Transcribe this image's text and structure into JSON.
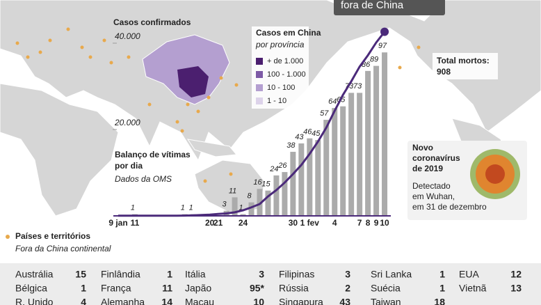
{
  "chart_data": {
    "type": "bar",
    "title": [
      "Balanço de vítimas",
      "por dia"
    ],
    "subtitle": "Dados da OMS",
    "y2_label": "Casos confirmados",
    "annotation": "fora de China",
    "categories": [
      "9 jan",
      null,
      "11",
      null,
      null,
      null,
      null,
      null,
      null,
      null,
      null,
      "20",
      "21",
      null,
      null,
      "24",
      null,
      null,
      null,
      null,
      null,
      "30",
      null,
      "1 fev",
      null,
      null,
      "4",
      null,
      null,
      "7",
      "8",
      "9",
      "10"
    ],
    "series": [
      {
        "color": "#ababab",
        "values": [
          null,
          null,
          1,
          null,
          null,
          null,
          null,
          null,
          1,
          1,
          null,
          null,
          null,
          3,
          11,
          1,
          8,
          16,
          15,
          24,
          26,
          38,
          43,
          46,
          45,
          57,
          64,
          65,
          73,
          73,
          86,
          89,
          97
        ]
      },
      {
        "type": "line",
        "axis": "y2",
        "color": "#4b2a7a",
        "values": [
          41,
          41,
          41,
          41,
          41,
          41,
          41,
          41,
          62,
          121,
          198,
          291,
          440,
          571,
          830,
          1287,
          1975,
          2744,
          4515,
          5974,
          7711,
          9692,
          11791,
          14380,
          17205,
          20438,
          24324,
          28018,
          31161,
          34546,
          37198,
          40171,
          42638
        ]
      }
    ],
    "ylim": [
      0,
      100
    ],
    "y2lim": [
      0,
      45000
    ],
    "y2ticks": [
      {
        "value": 20000,
        "label": "20.000"
      },
      {
        "value": 40000,
        "label": "40.000"
      }
    ]
  },
  "total": {
    "label": "Total mortos:",
    "value": 908
  },
  "map_legend": {
    "title": "Casos em China",
    "subtitle": "por província",
    "items": [
      {
        "label": "+ de 1.000",
        "color": "#4b1f6f"
      },
      {
        "label": "100 - 1.000",
        "color": "#7d5aa6"
      },
      {
        "label": "10 - 100",
        "color": "#b49fd0"
      },
      {
        "label": "1 - 10",
        "color": "#ddd3ea"
      }
    ]
  },
  "territories_legend": {
    "title": "Países e territórios",
    "subtitle": "Fora da China continental",
    "color": "#e8a94c"
  },
  "virus": {
    "title": [
      "Novo",
      "coronavírus",
      "de 2019"
    ],
    "text": [
      "Detectado",
      "em Wuhan,",
      "em 31 de dezembro"
    ]
  },
  "table": {
    "columns": [
      [
        [
          "Austrália",
          15
        ],
        [
          "Bélgica",
          1
        ],
        [
          "R. Unido",
          4
        ]
      ],
      [
        [
          "Finlândia",
          1
        ],
        [
          "França",
          11
        ],
        [
          "Alemanha",
          14
        ]
      ],
      [
        [
          "Itália",
          3
        ],
        [
          "Japão",
          "95*"
        ],
        [
          "Macau",
          10
        ]
      ],
      [
        [
          "Filipinas",
          3
        ],
        [
          "Rússia",
          2
        ],
        [
          "Singapura",
          43
        ]
      ],
      [
        [
          "Sri Lanka",
          1
        ],
        [
          "Suécia",
          1
        ],
        [
          "Taiwan",
          18
        ]
      ],
      [
        [
          "EUA",
          12
        ],
        [
          "Vietnã",
          13
        ]
      ]
    ]
  }
}
